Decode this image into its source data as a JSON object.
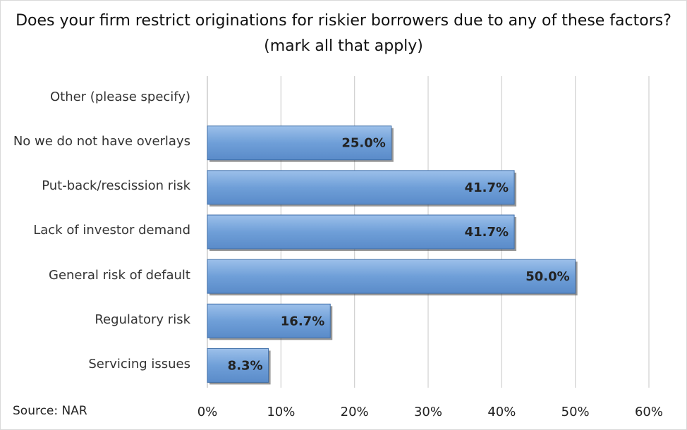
{
  "chart_data": {
    "type": "bar",
    "orientation": "horizontal",
    "title": "Does your firm restrict originations for riskier borrowers due to any of these factors? (mark all that apply)",
    "categories": [
      "Other (please specify)",
      "No we do not have overlays",
      "Put-back/rescission risk",
      "Lack of investor demand",
      "General risk of default",
      "Regulatory risk",
      "Servicing issues"
    ],
    "values": [
      null,
      25.0,
      41.7,
      41.7,
      50.0,
      16.7,
      8.3
    ],
    "value_labels": [
      null,
      "25.0%",
      "41.7%",
      "41.7%",
      "50.0%",
      "16.7%",
      "8.3%"
    ],
    "color": "#6f9fd8",
    "xlim": [
      0,
      60
    ],
    "xticks": [
      {
        "value": 0,
        "label": "0%"
      },
      {
        "value": 10,
        "label": "10%"
      },
      {
        "value": 20,
        "label": "20%"
      },
      {
        "value": 30,
        "label": "30%"
      },
      {
        "value": 40,
        "label": "40%"
      },
      {
        "value": 50,
        "label": "50%"
      },
      {
        "value": 60,
        "label": "60%"
      }
    ],
    "grid": true,
    "source": "Source: NAR"
  }
}
